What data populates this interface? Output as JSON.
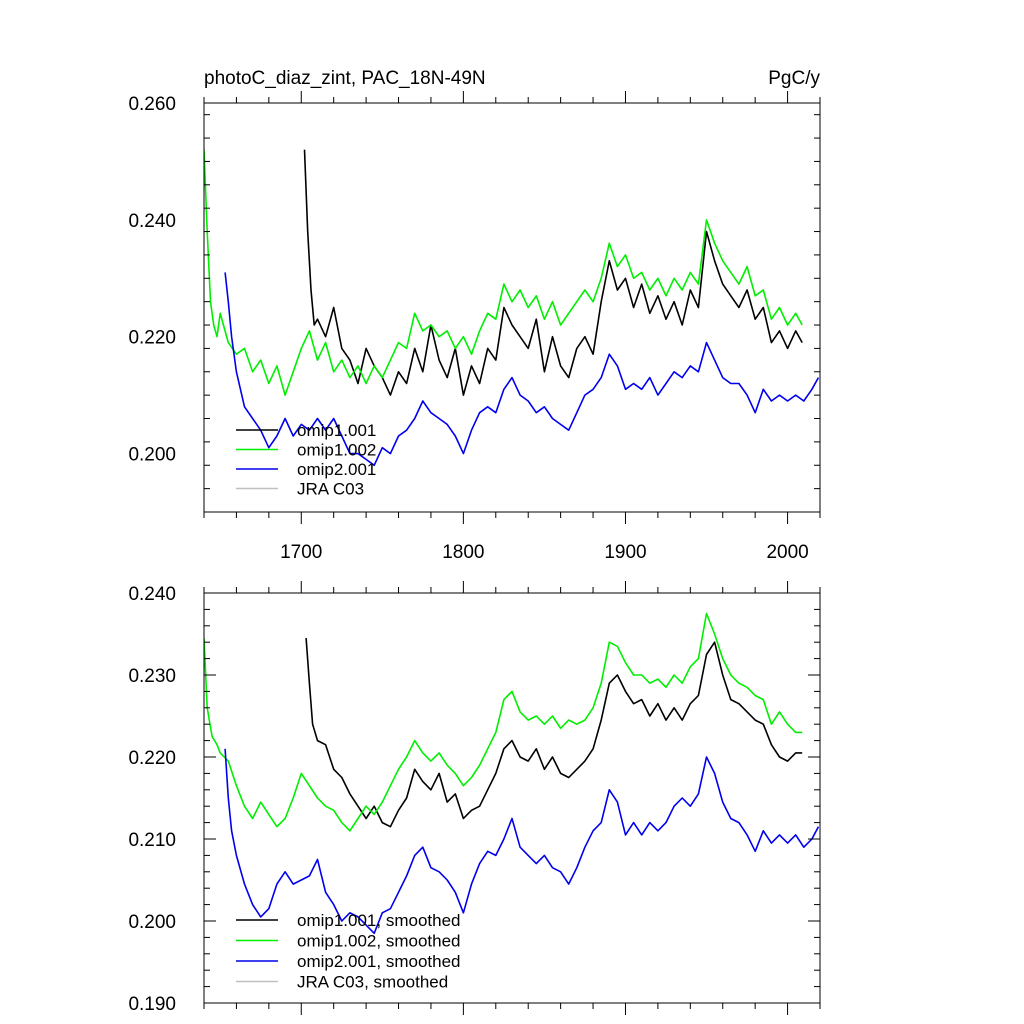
{
  "chart_data": [
    {
      "type": "line",
      "title": "photoC_diaz_zint, PAC_18N-49N",
      "units": "PgC/y",
      "xlim": [
        1640,
        2020
      ],
      "ylim": [
        0.19,
        0.26
      ],
      "yticks": [
        0.2,
        0.22,
        0.24,
        0.26
      ],
      "ytick_labels": [
        "0.200",
        "0.220",
        "0.240",
        "0.260"
      ],
      "xticks": [
        1700,
        1800,
        1900,
        2000
      ],
      "xtick_labels": [
        "1700",
        "1800",
        "1900",
        "2000"
      ],
      "legend_position": "bottom-left",
      "series": [
        {
          "name": "omip1.001",
          "color": "#000000",
          "x": [
            1702,
            1704,
            1706,
            1708,
            1710,
            1715,
            1720,
            1725,
            1730,
            1735,
            1740,
            1745,
            1750,
            1755,
            1760,
            1765,
            1770,
            1775,
            1780,
            1785,
            1790,
            1795,
            1800,
            1805,
            1810,
            1815,
            1820,
            1825,
            1830,
            1835,
            1840,
            1845,
            1850,
            1855,
            1860,
            1865,
            1870,
            1875,
            1880,
            1885,
            1890,
            1895,
            1900,
            1905,
            1910,
            1915,
            1920,
            1925,
            1930,
            1935,
            1940,
            1945,
            1950,
            1955,
            1960,
            1965,
            1970,
            1975,
            1980,
            1985,
            1990,
            1995,
            2000,
            2005,
            2009
          ],
          "y": [
            0.252,
            0.238,
            0.228,
            0.222,
            0.223,
            0.22,
            0.225,
            0.218,
            0.216,
            0.212,
            0.218,
            0.215,
            0.213,
            0.21,
            0.214,
            0.212,
            0.218,
            0.214,
            0.222,
            0.216,
            0.213,
            0.218,
            0.21,
            0.215,
            0.212,
            0.218,
            0.216,
            0.225,
            0.222,
            0.22,
            0.218,
            0.223,
            0.214,
            0.22,
            0.215,
            0.213,
            0.218,
            0.22,
            0.217,
            0.226,
            0.233,
            0.228,
            0.23,
            0.225,
            0.229,
            0.224,
            0.227,
            0.223,
            0.226,
            0.222,
            0.228,
            0.225,
            0.238,
            0.233,
            0.229,
            0.227,
            0.225,
            0.228,
            0.223,
            0.225,
            0.219,
            0.221,
            0.218,
            0.221,
            0.219
          ]
        },
        {
          "name": "omip1.002",
          "color": "#00ee00",
          "x": [
            1640,
            1642,
            1644,
            1646,
            1648,
            1650,
            1655,
            1660,
            1665,
            1670,
            1675,
            1680,
            1685,
            1690,
            1695,
            1700,
            1705,
            1710,
            1715,
            1720,
            1725,
            1730,
            1735,
            1740,
            1745,
            1750,
            1755,
            1760,
            1765,
            1770,
            1775,
            1780,
            1785,
            1790,
            1795,
            1800,
            1805,
            1810,
            1815,
            1820,
            1825,
            1830,
            1835,
            1840,
            1845,
            1850,
            1855,
            1860,
            1865,
            1870,
            1875,
            1880,
            1885,
            1890,
            1895,
            1900,
            1905,
            1910,
            1915,
            1920,
            1925,
            1930,
            1935,
            1940,
            1945,
            1950,
            1955,
            1960,
            1965,
            1970,
            1975,
            1980,
            1985,
            1990,
            1995,
            2000,
            2005,
            2009
          ],
          "y": [
            0.252,
            0.238,
            0.226,
            0.222,
            0.22,
            0.224,
            0.219,
            0.217,
            0.218,
            0.214,
            0.216,
            0.212,
            0.215,
            0.21,
            0.214,
            0.218,
            0.221,
            0.216,
            0.219,
            0.214,
            0.216,
            0.213,
            0.215,
            0.212,
            0.215,
            0.213,
            0.216,
            0.219,
            0.218,
            0.224,
            0.221,
            0.222,
            0.22,
            0.221,
            0.218,
            0.22,
            0.217,
            0.221,
            0.224,
            0.223,
            0.229,
            0.226,
            0.228,
            0.225,
            0.227,
            0.223,
            0.226,
            0.222,
            0.224,
            0.226,
            0.228,
            0.226,
            0.23,
            0.236,
            0.232,
            0.234,
            0.23,
            0.231,
            0.228,
            0.23,
            0.227,
            0.23,
            0.228,
            0.231,
            0.229,
            0.24,
            0.236,
            0.233,
            0.231,
            0.229,
            0.232,
            0.227,
            0.228,
            0.223,
            0.225,
            0.222,
            0.224,
            0.222
          ]
        },
        {
          "name": "omip2.001",
          "color": "#0000ee",
          "x": [
            1653,
            1655,
            1657,
            1660,
            1665,
            1670,
            1675,
            1680,
            1685,
            1690,
            1695,
            1700,
            1705,
            1710,
            1715,
            1720,
            1725,
            1730,
            1735,
            1740,
            1745,
            1750,
            1755,
            1760,
            1765,
            1770,
            1775,
            1780,
            1785,
            1790,
            1795,
            1800,
            1805,
            1810,
            1815,
            1820,
            1825,
            1830,
            1835,
            1840,
            1845,
            1850,
            1855,
            1860,
            1865,
            1870,
            1875,
            1880,
            1885,
            1890,
            1895,
            1900,
            1905,
            1910,
            1915,
            1920,
            1925,
            1930,
            1935,
            1940,
            1945,
            1950,
            1955,
            1960,
            1965,
            1970,
            1975,
            1980,
            1985,
            1990,
            1995,
            2000,
            2005,
            2010,
            2015,
            2019
          ],
          "y": [
            0.231,
            0.226,
            0.22,
            0.214,
            0.208,
            0.206,
            0.204,
            0.201,
            0.203,
            0.206,
            0.203,
            0.205,
            0.204,
            0.206,
            0.204,
            0.206,
            0.203,
            0.2,
            0.2,
            0.199,
            0.198,
            0.201,
            0.2,
            0.203,
            0.204,
            0.206,
            0.209,
            0.207,
            0.206,
            0.205,
            0.203,
            0.2,
            0.204,
            0.207,
            0.208,
            0.207,
            0.211,
            0.213,
            0.21,
            0.209,
            0.207,
            0.208,
            0.206,
            0.205,
            0.204,
            0.207,
            0.21,
            0.211,
            0.213,
            0.217,
            0.215,
            0.211,
            0.212,
            0.211,
            0.213,
            0.21,
            0.212,
            0.214,
            0.213,
            0.215,
            0.214,
            0.219,
            0.216,
            0.213,
            0.212,
            0.212,
            0.21,
            0.207,
            0.211,
            0.209,
            0.21,
            0.209,
            0.21,
            0.209,
            0.211,
            0.213
          ]
        },
        {
          "name": "JRA C03",
          "color": "#c0c0c0",
          "x": [],
          "y": []
        }
      ]
    },
    {
      "type": "line",
      "title": "",
      "xlim": [
        1640,
        2020
      ],
      "ylim": [
        0.19,
        0.24
      ],
      "yticks": [
        0.19,
        0.2,
        0.21,
        0.22,
        0.23,
        0.24
      ],
      "ytick_labels": [
        "0.190",
        "0.200",
        "0.210",
        "0.220",
        "0.230",
        "0.240"
      ],
      "xticks": [
        1700,
        1800,
        1900,
        2000
      ],
      "xtick_labels": [],
      "legend_position": "bottom-left",
      "series": [
        {
          "name": "omip1.001, smoothed",
          "color": "#000000",
          "x": [
            1703,
            1705,
            1707,
            1710,
            1715,
            1720,
            1725,
            1730,
            1735,
            1740,
            1745,
            1750,
            1755,
            1760,
            1765,
            1770,
            1775,
            1780,
            1785,
            1790,
            1795,
            1800,
            1805,
            1810,
            1815,
            1820,
            1825,
            1830,
            1835,
            1840,
            1845,
            1850,
            1855,
            1860,
            1865,
            1870,
            1875,
            1880,
            1885,
            1890,
            1895,
            1900,
            1905,
            1910,
            1915,
            1920,
            1925,
            1930,
            1935,
            1940,
            1945,
            1950,
            1955,
            1960,
            1965,
            1970,
            1975,
            1980,
            1985,
            1990,
            1995,
            2000,
            2005,
            2009
          ],
          "y": [
            0.2345,
            0.229,
            0.224,
            0.222,
            0.2215,
            0.2185,
            0.2175,
            0.2155,
            0.214,
            0.2125,
            0.214,
            0.212,
            0.2115,
            0.2135,
            0.215,
            0.2185,
            0.217,
            0.216,
            0.218,
            0.2145,
            0.2155,
            0.2125,
            0.2135,
            0.214,
            0.216,
            0.218,
            0.221,
            0.222,
            0.22,
            0.2195,
            0.221,
            0.2185,
            0.22,
            0.218,
            0.2175,
            0.2185,
            0.2195,
            0.221,
            0.2245,
            0.229,
            0.23,
            0.228,
            0.2265,
            0.227,
            0.225,
            0.2265,
            0.2245,
            0.226,
            0.2245,
            0.2265,
            0.2275,
            0.2325,
            0.234,
            0.23,
            0.227,
            0.2265,
            0.2255,
            0.2245,
            0.224,
            0.2215,
            0.22,
            0.2195,
            0.2205,
            0.2205
          ]
        },
        {
          "name": "omip1.002, smoothed",
          "color": "#00ee00",
          "x": [
            1640,
            1642,
            1645,
            1648,
            1650,
            1655,
            1660,
            1665,
            1670,
            1675,
            1680,
            1685,
            1690,
            1695,
            1700,
            1705,
            1710,
            1715,
            1720,
            1725,
            1730,
            1735,
            1740,
            1745,
            1750,
            1755,
            1760,
            1765,
            1770,
            1775,
            1780,
            1785,
            1790,
            1795,
            1800,
            1805,
            1810,
            1815,
            1820,
            1825,
            1830,
            1835,
            1840,
            1845,
            1850,
            1855,
            1860,
            1865,
            1870,
            1875,
            1880,
            1885,
            1890,
            1895,
            1900,
            1905,
            1910,
            1915,
            1920,
            1925,
            1930,
            1935,
            1940,
            1945,
            1950,
            1955,
            1960,
            1965,
            1970,
            1975,
            1980,
            1985,
            1990,
            1995,
            2000,
            2005,
            2009
          ],
          "y": [
            0.2345,
            0.226,
            0.2225,
            0.2215,
            0.2205,
            0.2195,
            0.2165,
            0.214,
            0.2125,
            0.2145,
            0.213,
            0.2115,
            0.2125,
            0.215,
            0.218,
            0.2165,
            0.215,
            0.214,
            0.2135,
            0.212,
            0.211,
            0.2125,
            0.214,
            0.213,
            0.2145,
            0.2165,
            0.2185,
            0.22,
            0.222,
            0.2205,
            0.2195,
            0.2205,
            0.219,
            0.218,
            0.2165,
            0.2175,
            0.219,
            0.221,
            0.223,
            0.227,
            0.228,
            0.2255,
            0.2245,
            0.225,
            0.224,
            0.225,
            0.2235,
            0.2245,
            0.224,
            0.2245,
            0.226,
            0.229,
            0.234,
            0.2335,
            0.2315,
            0.23,
            0.23,
            0.229,
            0.2295,
            0.2285,
            0.23,
            0.229,
            0.231,
            0.232,
            0.2375,
            0.235,
            0.232,
            0.23,
            0.229,
            0.2285,
            0.2275,
            0.227,
            0.224,
            0.2255,
            0.224,
            0.223,
            0.223
          ]
        },
        {
          "name": "omip2.001, smoothed",
          "color": "#0000ee",
          "x": [
            1653,
            1655,
            1657,
            1660,
            1665,
            1670,
            1675,
            1680,
            1685,
            1690,
            1695,
            1700,
            1705,
            1710,
            1715,
            1720,
            1725,
            1730,
            1735,
            1740,
            1745,
            1750,
            1755,
            1760,
            1765,
            1770,
            1775,
            1780,
            1785,
            1790,
            1795,
            1800,
            1805,
            1810,
            1815,
            1820,
            1825,
            1830,
            1835,
            1840,
            1845,
            1850,
            1855,
            1860,
            1865,
            1870,
            1875,
            1880,
            1885,
            1890,
            1895,
            1900,
            1905,
            1910,
            1915,
            1920,
            1925,
            1930,
            1935,
            1940,
            1945,
            1950,
            1955,
            1960,
            1965,
            1970,
            1975,
            1980,
            1985,
            1990,
            1995,
            2000,
            2005,
            2010,
            2015,
            2019
          ],
          "y": [
            0.221,
            0.215,
            0.211,
            0.208,
            0.2045,
            0.202,
            0.2005,
            0.2015,
            0.2045,
            0.206,
            0.2045,
            0.205,
            0.2055,
            0.2075,
            0.2035,
            0.202,
            0.2,
            0.201,
            0.2005,
            0.1995,
            0.1985,
            0.201,
            0.2015,
            0.2035,
            0.2055,
            0.208,
            0.209,
            0.2065,
            0.206,
            0.205,
            0.2035,
            0.201,
            0.2045,
            0.207,
            0.2085,
            0.208,
            0.21,
            0.2125,
            0.209,
            0.208,
            0.207,
            0.208,
            0.2065,
            0.206,
            0.2045,
            0.2065,
            0.209,
            0.211,
            0.212,
            0.216,
            0.2145,
            0.2105,
            0.212,
            0.2105,
            0.212,
            0.211,
            0.212,
            0.214,
            0.215,
            0.214,
            0.2155,
            0.22,
            0.218,
            0.2145,
            0.2125,
            0.212,
            0.2105,
            0.2085,
            0.211,
            0.2095,
            0.2105,
            0.2095,
            0.2105,
            0.209,
            0.21,
            0.2115
          ]
        },
        {
          "name": "JRA C03, smoothed",
          "color": "#c0c0c0",
          "x": [],
          "y": []
        }
      ]
    }
  ]
}
